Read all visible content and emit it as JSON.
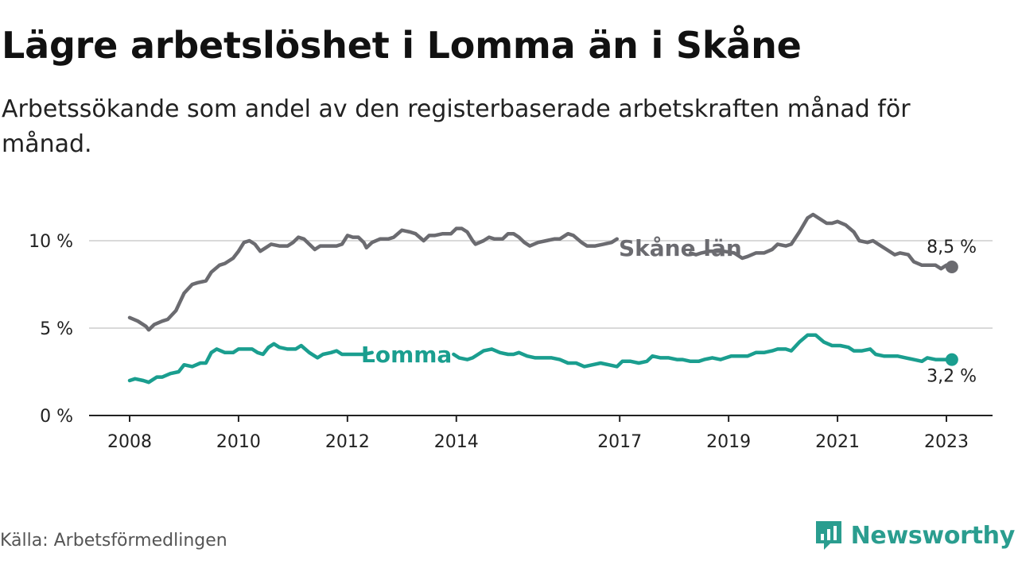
{
  "header": {
    "title": "Lägre arbetslöshet i Lomma än i Skåne",
    "subtitle": "Arbetssökande som andel av den registerbaserade arbetskraften månad för månad."
  },
  "footer": {
    "source": "Källa: Arbetsförmedlingen",
    "brand": "Newsworthy"
  },
  "colors": {
    "skane": "#6b6b70",
    "lomma": "#1a9e8f",
    "grid": "#d9d9d9",
    "axis": "#222222",
    "brand": "#2a9d8f"
  },
  "chart_data": {
    "type": "line",
    "title": "Lägre arbetslöshet i Lomma än i Skåne",
    "xlabel": "",
    "ylabel": "",
    "xlim": [
      2008.0,
      2023.1
    ],
    "ylim": [
      0,
      12
    ],
    "y_ticks": [
      {
        "value": 0,
        "label": "0 %"
      },
      {
        "value": 5,
        "label": "5 %"
      },
      {
        "value": 10,
        "label": "10 %"
      }
    ],
    "x_ticks": [
      {
        "value": 2008,
        "label": "2008"
      },
      {
        "value": 2010,
        "label": "2010"
      },
      {
        "value": 2012,
        "label": "2012"
      },
      {
        "value": 2014,
        "label": "2014"
      },
      {
        "value": 2017,
        "label": "2017"
      },
      {
        "value": 2019,
        "label": "2019"
      },
      {
        "value": 2021,
        "label": "2021"
      },
      {
        "value": 2023,
        "label": "2023"
      }
    ],
    "series": [
      {
        "name": "Skåne län",
        "key": "skane",
        "end_label": "8,5 %",
        "points": [
          [
            2008.0,
            5.6
          ],
          [
            2008.15,
            5.4
          ],
          [
            2008.3,
            5.1
          ],
          [
            2008.35,
            4.9
          ],
          [
            2008.45,
            5.2
          ],
          [
            2008.6,
            5.4
          ],
          [
            2008.7,
            5.5
          ],
          [
            2008.85,
            6.0
          ],
          [
            2009.0,
            7.0
          ],
          [
            2009.15,
            7.5
          ],
          [
            2009.25,
            7.6
          ],
          [
            2009.4,
            7.7
          ],
          [
            2009.5,
            8.2
          ],
          [
            2009.65,
            8.6
          ],
          [
            2009.75,
            8.7
          ],
          [
            2009.9,
            9.0
          ],
          [
            2010.0,
            9.4
          ],
          [
            2010.1,
            9.9
          ],
          [
            2010.2,
            10.0
          ],
          [
            2010.3,
            9.8
          ],
          [
            2010.4,
            9.4
          ],
          [
            2010.5,
            9.6
          ],
          [
            2010.6,
            9.8
          ],
          [
            2010.75,
            9.7
          ],
          [
            2010.9,
            9.7
          ],
          [
            2011.0,
            9.9
          ],
          [
            2011.1,
            10.2
          ],
          [
            2011.2,
            10.1
          ],
          [
            2011.3,
            9.8
          ],
          [
            2011.4,
            9.5
          ],
          [
            2011.5,
            9.7
          ],
          [
            2011.65,
            9.7
          ],
          [
            2011.8,
            9.7
          ],
          [
            2011.9,
            9.8
          ],
          [
            2012.0,
            10.3
          ],
          [
            2012.1,
            10.2
          ],
          [
            2012.2,
            10.2
          ],
          [
            2012.3,
            9.9
          ],
          [
            2012.35,
            9.6
          ],
          [
            2012.45,
            9.9
          ],
          [
            2012.6,
            10.1
          ],
          [
            2012.75,
            10.1
          ],
          [
            2012.85,
            10.2
          ],
          [
            2013.0,
            10.6
          ],
          [
            2013.15,
            10.5
          ],
          [
            2013.25,
            10.4
          ],
          [
            2013.4,
            10.0
          ],
          [
            2013.5,
            10.3
          ],
          [
            2013.6,
            10.3
          ],
          [
            2013.75,
            10.4
          ],
          [
            2013.9,
            10.4
          ],
          [
            2014.0,
            10.7
          ],
          [
            2014.1,
            10.7
          ],
          [
            2014.2,
            10.5
          ],
          [
            2014.3,
            10.0
          ],
          [
            2014.35,
            9.8
          ],
          [
            2014.5,
            10.0
          ],
          [
            2014.6,
            10.2
          ],
          [
            2014.7,
            10.1
          ],
          [
            2014.85,
            10.1
          ],
          [
            2014.95,
            10.4
          ],
          [
            2015.05,
            10.4
          ],
          [
            2015.15,
            10.2
          ],
          [
            2015.25,
            9.9
          ],
          [
            2015.35,
            9.7
          ],
          [
            2015.5,
            9.9
          ],
          [
            2015.65,
            10.0
          ],
          [
            2015.8,
            10.1
          ],
          [
            2015.9,
            10.1
          ],
          [
            2016.05,
            10.4
          ],
          [
            2016.15,
            10.3
          ],
          [
            2016.3,
            9.9
          ],
          [
            2016.4,
            9.7
          ],
          [
            2016.55,
            9.7
          ],
          [
            2016.7,
            9.8
          ],
          [
            2016.85,
            9.9
          ],
          [
            2016.95,
            10.1
          ],
          [
            2018.3,
            9.3
          ],
          [
            2018.4,
            9.2
          ],
          [
            2018.5,
            9.3
          ],
          [
            2018.65,
            9.4
          ],
          [
            2018.8,
            9.4
          ],
          [
            2018.9,
            9.4
          ],
          [
            2019.1,
            9.3
          ],
          [
            2019.25,
            9.0
          ],
          [
            2019.35,
            9.1
          ],
          [
            2019.5,
            9.3
          ],
          [
            2019.65,
            9.3
          ],
          [
            2019.8,
            9.5
          ],
          [
            2019.9,
            9.8
          ],
          [
            2020.05,
            9.7
          ],
          [
            2020.15,
            9.8
          ],
          [
            2020.3,
            10.5
          ],
          [
            2020.45,
            11.3
          ],
          [
            2020.55,
            11.5
          ],
          [
            2020.65,
            11.3
          ],
          [
            2020.8,
            11.0
          ],
          [
            2020.9,
            11.0
          ],
          [
            2021.0,
            11.1
          ],
          [
            2021.15,
            10.9
          ],
          [
            2021.3,
            10.5
          ],
          [
            2021.4,
            10.0
          ],
          [
            2021.55,
            9.9
          ],
          [
            2021.65,
            10.0
          ],
          [
            2021.8,
            9.7
          ],
          [
            2021.9,
            9.5
          ],
          [
            2022.05,
            9.2
          ],
          [
            2022.15,
            9.3
          ],
          [
            2022.3,
            9.2
          ],
          [
            2022.4,
            8.8
          ],
          [
            2022.55,
            8.6
          ],
          [
            2022.65,
            8.6
          ],
          [
            2022.8,
            8.6
          ],
          [
            2022.9,
            8.4
          ],
          [
            2023.0,
            8.6
          ],
          [
            2023.1,
            8.5
          ]
        ]
      },
      {
        "name": "Lomma",
        "key": "lomma",
        "end_label": "3,2 %",
        "points": [
          [
            2008.0,
            2.0
          ],
          [
            2008.1,
            2.1
          ],
          [
            2008.25,
            2.0
          ],
          [
            2008.35,
            1.9
          ],
          [
            2008.5,
            2.2
          ],
          [
            2008.6,
            2.2
          ],
          [
            2008.75,
            2.4
          ],
          [
            2008.9,
            2.5
          ],
          [
            2009.0,
            2.9
          ],
          [
            2009.15,
            2.8
          ],
          [
            2009.3,
            3.0
          ],
          [
            2009.4,
            3.0
          ],
          [
            2009.5,
            3.6
          ],
          [
            2009.6,
            3.8
          ],
          [
            2009.75,
            3.6
          ],
          [
            2009.9,
            3.6
          ],
          [
            2010.0,
            3.8
          ],
          [
            2010.1,
            3.8
          ],
          [
            2010.25,
            3.8
          ],
          [
            2010.35,
            3.6
          ],
          [
            2010.45,
            3.5
          ],
          [
            2010.55,
            3.9
          ],
          [
            2010.65,
            4.1
          ],
          [
            2010.75,
            3.9
          ],
          [
            2010.9,
            3.8
          ],
          [
            2011.05,
            3.8
          ],
          [
            2011.15,
            4.0
          ],
          [
            2011.3,
            3.6
          ],
          [
            2011.45,
            3.3
          ],
          [
            2011.55,
            3.5
          ],
          [
            2011.7,
            3.6
          ],
          [
            2011.8,
            3.7
          ],
          [
            2011.9,
            3.5
          ],
          [
            2012.0,
            3.5
          ],
          [
            2012.15,
            3.5
          ],
          [
            2012.3,
            3.5
          ],
          [
            2012.45,
            3.6
          ],
          [
            2013.95,
            3.5
          ],
          [
            2014.05,
            3.3
          ],
          [
            2014.2,
            3.2
          ],
          [
            2014.3,
            3.3
          ],
          [
            2014.4,
            3.5
          ],
          [
            2014.5,
            3.7
          ],
          [
            2014.65,
            3.8
          ],
          [
            2014.8,
            3.6
          ],
          [
            2014.95,
            3.5
          ],
          [
            2015.05,
            3.5
          ],
          [
            2015.15,
            3.6
          ],
          [
            2015.3,
            3.4
          ],
          [
            2015.45,
            3.3
          ],
          [
            2015.6,
            3.3
          ],
          [
            2015.75,
            3.3
          ],
          [
            2015.9,
            3.2
          ],
          [
            2016.05,
            3.0
          ],
          [
            2016.2,
            3.0
          ],
          [
            2016.35,
            2.8
          ],
          [
            2016.5,
            2.9
          ],
          [
            2016.65,
            3.0
          ],
          [
            2016.8,
            2.9
          ],
          [
            2016.95,
            2.8
          ],
          [
            2017.05,
            3.1
          ],
          [
            2017.2,
            3.1
          ],
          [
            2017.35,
            3.0
          ],
          [
            2017.5,
            3.1
          ],
          [
            2017.6,
            3.4
          ],
          [
            2017.75,
            3.3
          ],
          [
            2017.9,
            3.3
          ],
          [
            2018.05,
            3.2
          ],
          [
            2018.15,
            3.2
          ],
          [
            2018.3,
            3.1
          ],
          [
            2018.45,
            3.1
          ],
          [
            2018.55,
            3.2
          ],
          [
            2018.7,
            3.3
          ],
          [
            2018.85,
            3.2
          ],
          [
            2018.95,
            3.3
          ],
          [
            2019.05,
            3.4
          ],
          [
            2019.2,
            3.4
          ],
          [
            2019.35,
            3.4
          ],
          [
            2019.5,
            3.6
          ],
          [
            2019.65,
            3.6
          ],
          [
            2019.8,
            3.7
          ],
          [
            2019.9,
            3.8
          ],
          [
            2020.05,
            3.8
          ],
          [
            2020.15,
            3.7
          ],
          [
            2020.3,
            4.2
          ],
          [
            2020.45,
            4.6
          ],
          [
            2020.6,
            4.6
          ],
          [
            2020.75,
            4.2
          ],
          [
            2020.9,
            4.0
          ],
          [
            2021.05,
            4.0
          ],
          [
            2021.2,
            3.9
          ],
          [
            2021.3,
            3.7
          ],
          [
            2021.45,
            3.7
          ],
          [
            2021.6,
            3.8
          ],
          [
            2021.7,
            3.5
          ],
          [
            2021.85,
            3.4
          ],
          [
            2021.95,
            3.4
          ],
          [
            2022.1,
            3.4
          ],
          [
            2022.25,
            3.3
          ],
          [
            2022.4,
            3.2
          ],
          [
            2022.55,
            3.1
          ],
          [
            2022.65,
            3.3
          ],
          [
            2022.8,
            3.2
          ],
          [
            2022.95,
            3.2
          ],
          [
            2023.1,
            3.2
          ]
        ]
      }
    ]
  }
}
